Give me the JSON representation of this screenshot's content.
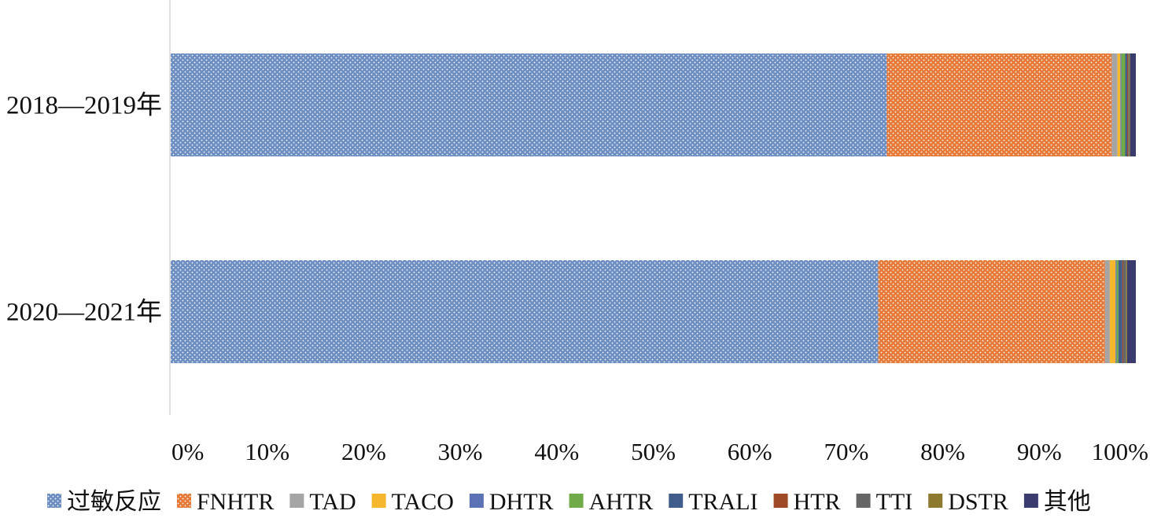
{
  "chart_data": {
    "type": "bar",
    "orientation": "horizontal",
    "stacked_percent": true,
    "categories": [
      "2018—2019年",
      "2020—2021年"
    ],
    "xlim": [
      0,
      100
    ],
    "x_ticks": [
      "0%",
      "10%",
      "20%",
      "30%",
      "40%",
      "50%",
      "60%",
      "70%",
      "80%",
      "90%",
      "100%"
    ],
    "grid": false,
    "legend_position": "bottom",
    "series": [
      {
        "name": "过敏反应",
        "color": "#6E8FC4",
        "pattern": "dots",
        "values": [
          74.2,
          73.3
        ]
      },
      {
        "name": "FNHTR",
        "color": "#E57A39",
        "pattern": "dots",
        "values": [
          23.3,
          23.5
        ]
      },
      {
        "name": "TAD",
        "color": "#A5A5A5",
        "values": [
          0.6,
          0.5
        ]
      },
      {
        "name": "TACO",
        "color": "#F5B72E",
        "values": [
          0.3,
          0.6
        ]
      },
      {
        "name": "DHTR",
        "color": "#5B73B5",
        "values": [
          0.1,
          0.1
        ]
      },
      {
        "name": "AHTR",
        "color": "#71AA48",
        "values": [
          0.4,
          0.2
        ]
      },
      {
        "name": "TRALI",
        "color": "#3F5C8A",
        "values": [
          0.2,
          0.4
        ]
      },
      {
        "name": "HTR",
        "color": "#9E4A26",
        "values": [
          0.1,
          0.1
        ]
      },
      {
        "name": "TTI",
        "color": "#666666",
        "values": [
          0.1,
          0.3
        ]
      },
      {
        "name": "DSTR",
        "color": "#8D7A2E",
        "values": [
          0.1,
          0.1
        ]
      },
      {
        "name": "其他",
        "color": "#3B3C6E",
        "values": [
          0.6,
          0.9
        ]
      }
    ]
  }
}
